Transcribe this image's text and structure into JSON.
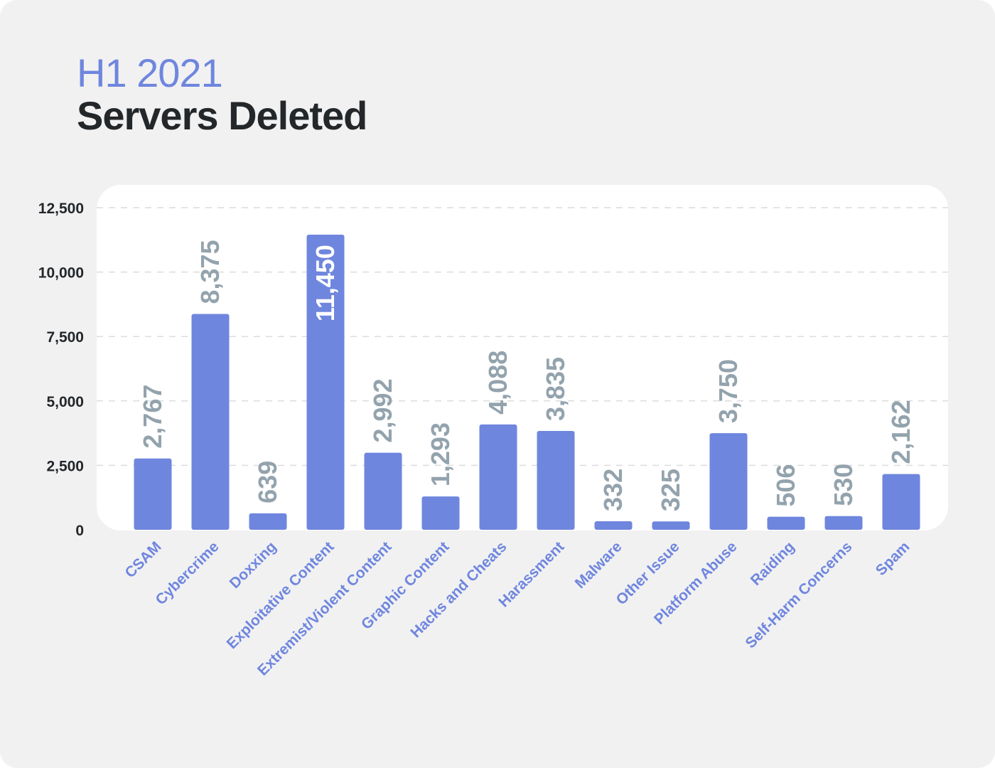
{
  "header": {
    "kicker": "H1 2021",
    "title": "Servers Deleted"
  },
  "colors": {
    "bar": "#6f86de",
    "value_label": "#93a3ad",
    "value_label_inside": "#ffffff",
    "category_label": "#6f86de",
    "axis_text": "#23272a",
    "gridline": "#dcdcdc",
    "plot_bg": "#ffffff",
    "card_bg": "#f1f1f2"
  },
  "chart_data": {
    "type": "bar",
    "title": "Servers Deleted",
    "subtitle": "H1 2021",
    "xlabel": "",
    "ylabel": "",
    "categories": [
      "CSAM",
      "Cybercrime",
      "Doxxing",
      "Exploitative Content",
      "Extremist/Violent Content",
      "Graphic Content",
      "Hacks and Cheats",
      "Harassment",
      "Malware",
      "Other Issue",
      "Platform Abuse",
      "Raiding",
      "Self-Harm Concerns",
      "Spam"
    ],
    "values": [
      2767,
      8375,
      639,
      11450,
      2992,
      1293,
      4088,
      3835,
      332,
      325,
      3750,
      506,
      530,
      2162
    ],
    "value_labels": [
      "2,767",
      "8,375",
      "639",
      "11,450",
      "2,992",
      "1,293",
      "4,088",
      "3,835",
      "332",
      "325",
      "3,750",
      "506",
      "530",
      "2,162"
    ],
    "label_inside": [
      false,
      false,
      false,
      true,
      false,
      false,
      false,
      false,
      false,
      false,
      false,
      false,
      false,
      false
    ],
    "ylim": [
      0,
      12500
    ],
    "yticks": [
      0,
      2500,
      5000,
      7500,
      10000,
      12500
    ],
    "ytick_labels": [
      "0",
      "2,500",
      "5,000",
      "7,500",
      "10,000",
      "12,500"
    ],
    "grid": true,
    "legend": "none"
  }
}
